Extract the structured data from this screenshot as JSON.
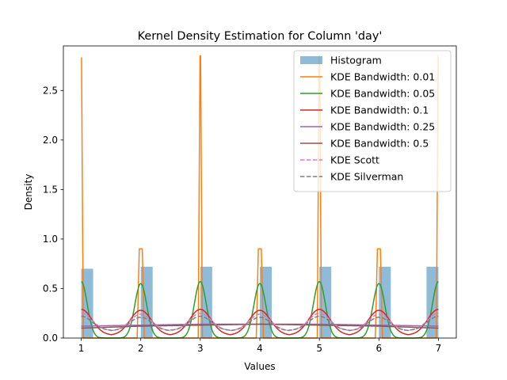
{
  "chart_data": {
    "type": "line",
    "title": "Kernel Density Estimation for Column 'day'",
    "xlabel": "Values",
    "ylabel": "Density",
    "xlim": [
      0.7,
      7.3
    ],
    "ylim": [
      0,
      2.95
    ],
    "xticks": [
      1,
      2,
      3,
      4,
      5,
      6,
      7
    ],
    "yticks": [
      0.0,
      0.5,
      1.0,
      1.5,
      2.0,
      2.5
    ],
    "ytick_labels": [
      "0.0",
      "0.5",
      "1.0",
      "1.5",
      "2.0",
      "2.5"
    ],
    "legend_position": "top-right",
    "grid": false,
    "histogram": {
      "name": "Histogram",
      "color": "#1f77b4",
      "alpha": 0.5,
      "bins": [
        {
          "x0": 1.0,
          "x1": 1.2,
          "density": 0.7
        },
        {
          "x0": 2.0,
          "x1": 2.2,
          "density": 0.72
        },
        {
          "x0": 3.0,
          "x1": 3.2,
          "density": 0.72
        },
        {
          "x0": 4.0,
          "x1": 4.2,
          "density": 0.72
        },
        {
          "x0": 5.0,
          "x1": 5.2,
          "density": 0.72
        },
        {
          "x0": 6.0,
          "x1": 6.2,
          "density": 0.72
        },
        {
          "x0": 6.8,
          "x1": 7.0,
          "density": 0.72
        }
      ]
    },
    "series": [
      {
        "name": "KDE Bandwidth: 0.01",
        "color": "#ff7f0e",
        "dash": "solid",
        "peaks": [
          {
            "x": 1,
            "y": 2.83
          },
          {
            "x": 2,
            "y": 0.9
          },
          {
            "x": 3,
            "y": 2.85
          },
          {
            "x": 4,
            "y": 0.9
          },
          {
            "x": 5,
            "y": 2.85
          },
          {
            "x": 6,
            "y": 0.9
          },
          {
            "x": 7,
            "y": 2.85
          }
        ]
      },
      {
        "name": "KDE Bandwidth: 0.05",
        "color": "#2ca02c",
        "dash": "solid",
        "peaks": [
          {
            "x": 1,
            "y": 0.57
          },
          {
            "x": 2,
            "y": 0.55
          },
          {
            "x": 3,
            "y": 0.57
          },
          {
            "x": 4,
            "y": 0.55
          },
          {
            "x": 5,
            "y": 0.57
          },
          {
            "x": 6,
            "y": 0.55
          },
          {
            "x": 7,
            "y": 0.57
          }
        ]
      },
      {
        "name": "KDE Bandwidth: 0.1",
        "color": "#d62728",
        "dash": "solid",
        "peaks": [
          {
            "x": 1,
            "y": 0.29
          },
          {
            "x": 2,
            "y": 0.28
          },
          {
            "x": 3,
            "y": 0.29
          },
          {
            "x": 4,
            "y": 0.28
          },
          {
            "x": 5,
            "y": 0.29
          },
          {
            "x": 6,
            "y": 0.28
          },
          {
            "x": 7,
            "y": 0.29
          }
        ]
      },
      {
        "name": "KDE Bandwidth: 0.25",
        "color": "#9467bd",
        "dash": "solid",
        "values_at_ticks": [
          0.12,
          0.13,
          0.14,
          0.14,
          0.14,
          0.13,
          0.12
        ]
      },
      {
        "name": "KDE Bandwidth: 0.5",
        "color": "#8c564b",
        "dash": "solid",
        "values_at_ticks": [
          0.1,
          0.12,
          0.13,
          0.14,
          0.13,
          0.12,
          0.1
        ]
      },
      {
        "name": "KDE Scott",
        "color": "#e377c2",
        "dash": "dashed",
        "peaks": [
          {
            "x": 1,
            "y": 0.25
          },
          {
            "x": 2,
            "y": 0.24
          },
          {
            "x": 3,
            "y": 0.25
          },
          {
            "x": 4,
            "y": 0.24
          },
          {
            "x": 5,
            "y": 0.25
          },
          {
            "x": 6,
            "y": 0.24
          },
          {
            "x": 7,
            "y": 0.25
          }
        ]
      },
      {
        "name": "KDE Silverman",
        "color": "#7f7f7f",
        "dash": "dashed",
        "peaks": [
          {
            "x": 1,
            "y": 0.22
          },
          {
            "x": 2,
            "y": 0.21
          },
          {
            "x": 3,
            "y": 0.22
          },
          {
            "x": 4,
            "y": 0.21
          },
          {
            "x": 5,
            "y": 0.22
          },
          {
            "x": 6,
            "y": 0.21
          },
          {
            "x": 7,
            "y": 0.22
          }
        ]
      }
    ]
  }
}
